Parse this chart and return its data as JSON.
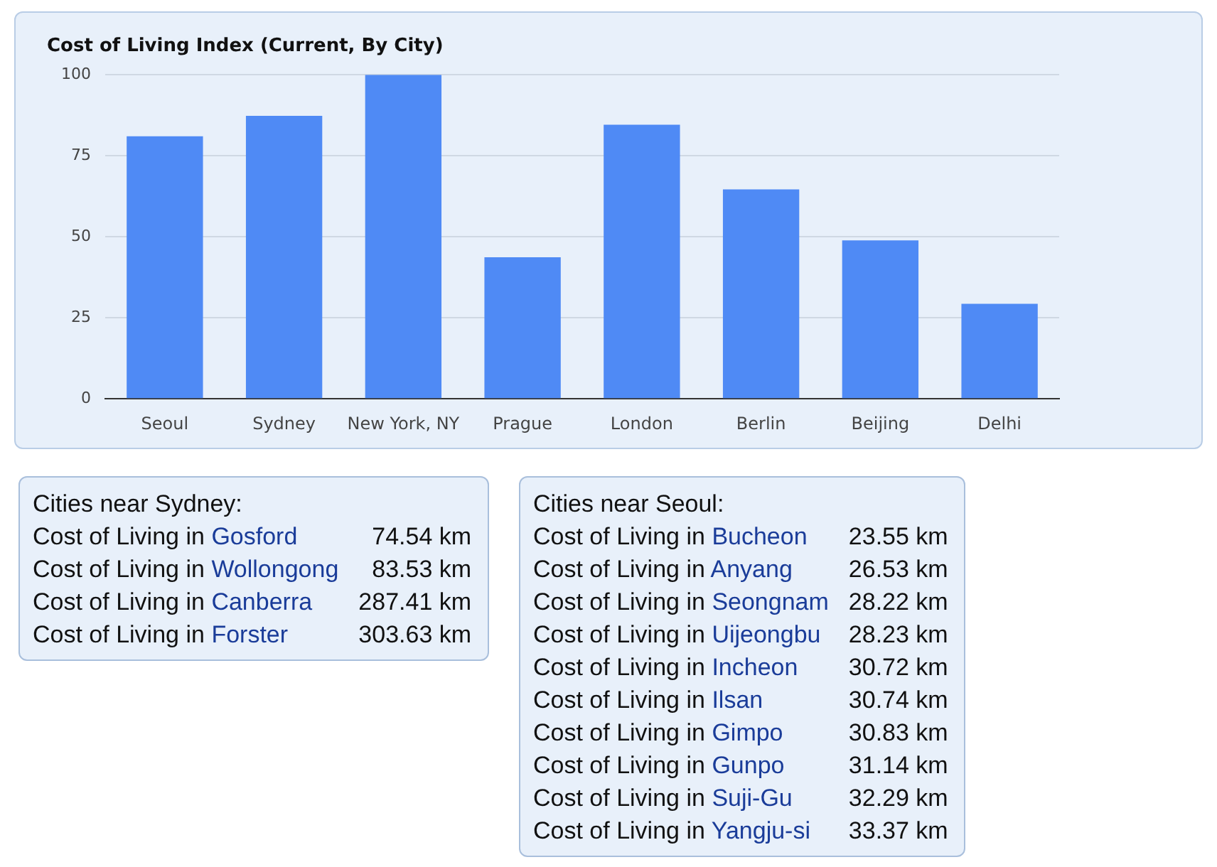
{
  "chart_data": [
    {
      "type": "bar",
      "title": "Cost of Living Index (Current, By City)",
      "categories": [
        "Seoul",
        "Sydney",
        "New York, NY",
        "Prague",
        "London",
        "Berlin",
        "Beijing",
        "Delhi"
      ],
      "values": [
        81,
        87.3,
        100,
        43.7,
        84.6,
        64.6,
        48.9,
        29.3
      ],
      "color": "#4f8af5",
      "ylim": [
        0,
        100
      ],
      "yticks": [
        0,
        25,
        50,
        75,
        100
      ],
      "grid": "y",
      "legend": false
    },
    {
      "type": "other",
      "title": "Cities near Sydney:",
      "annotations": [
        "Cost of Living in",
        "Gosford",
        "74.54 km",
        "Cost of Living in",
        "Wollongong",
        "83.53 km",
        "Cost of Living in",
        "Canberra",
        "287.41 km",
        "Cost of Living in",
        "Forster",
        "303.63 km"
      ]
    },
    {
      "type": "other",
      "title": "Cities near Seoul:",
      "annotations": [
        "Cost of Living in",
        "Bucheon",
        "23.55 km",
        "Cost of Living in",
        "Anyang",
        "26.53 km",
        "Cost of Living in",
        "Seongnam",
        "28.22 km",
        "Cost of Living in",
        "Uijeongbu",
        "28.23 km",
        "Cost of Living in",
        "Incheon",
        "30.72 km",
        "Cost of Living in",
        "Ilsan",
        "30.74 km",
        "Cost of Living in",
        "Gimpo",
        "30.83 km",
        "Cost of Living in",
        "Gunpo",
        "31.14 km",
        "Cost of Living in",
        "Suji-Gu",
        "32.29 km",
        "Cost of Living in",
        "Yangju-si",
        "33.37 km"
      ]
    }
  ]
}
